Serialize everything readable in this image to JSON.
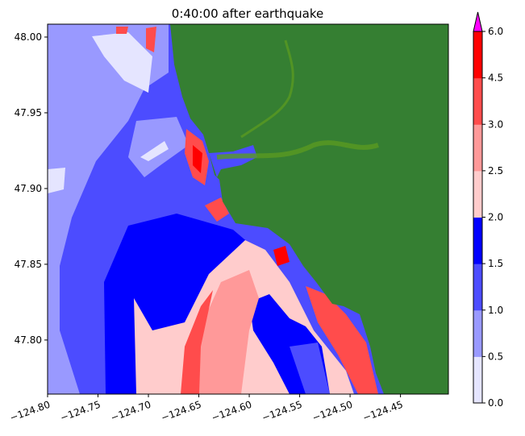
{
  "chart_data": {
    "type": "heatmap",
    "title": "0:40:00 after earthquake",
    "xlabel": "",
    "ylabel": "",
    "xlim": [
      -124.8,
      -124.4025
    ],
    "ylim": [
      47.7643,
      48.0085
    ],
    "xticks": [
      -124.8,
      -124.75,
      -124.7,
      -124.65,
      -124.6,
      -124.55,
      -124.5,
      -124.45
    ],
    "xtick_labels": [
      "−124.80",
      "−124.75",
      "−124.70",
      "−124.65",
      "−124.60",
      "−124.55",
      "−124.50",
      "−124.45"
    ],
    "yticks": [
      47.8,
      47.85,
      47.9,
      47.95,
      48.0
    ],
    "ytick_labels": [
      "47.80",
      "47.85",
      "47.90",
      "47.95",
      "48.00"
    ],
    "land_color": "#357f32",
    "colorbar": {
      "levels": [
        0.0,
        0.5,
        1.0,
        1.5,
        2.0,
        2.5,
        3.0,
        4.5,
        6.0
      ],
      "tick_labels": [
        "0.0",
        "0.5",
        "1.0",
        "1.5",
        "2.0",
        "2.5",
        "3.0",
        "4.5",
        "6.0"
      ],
      "colors": [
        "#e5e5ff",
        "#9999ff",
        "#4c4cff",
        "#0000ff",
        "#ffcccc",
        "#ff9999",
        "#ff4c4c",
        "#ff0000"
      ],
      "extend_max_color": "#ff00ff"
    }
  }
}
